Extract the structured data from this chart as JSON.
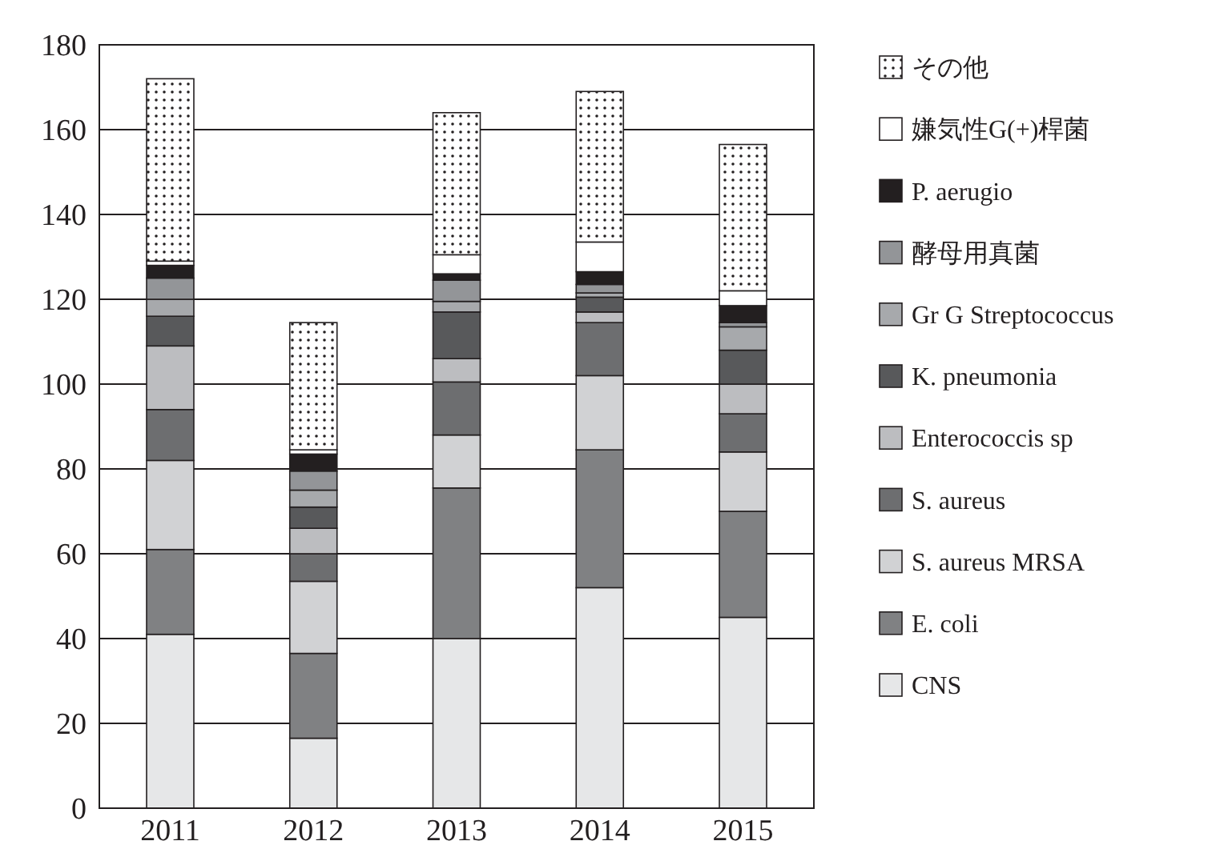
{
  "chart_data": {
    "type": "bar",
    "stacked": true,
    "categories": [
      "2011",
      "2012",
      "2013",
      "2014",
      "2015"
    ],
    "ylim": [
      0,
      180
    ],
    "yticks": [
      0,
      20,
      40,
      60,
      80,
      100,
      120,
      140,
      160,
      180
    ],
    "grid": "y",
    "legend": "right",
    "series": [
      {
        "name": "CNS",
        "color": "#e6e7e8",
        "values": [
          41,
          16.5,
          40,
          52,
          45
        ]
      },
      {
        "name": "E. coli",
        "color": "#808183",
        "values": [
          20,
          20,
          35.5,
          32.5,
          25
        ]
      },
      {
        "name": "S. aureus MRSA",
        "color": "#d1d2d4",
        "values": [
          21,
          17,
          12.5,
          17.5,
          14
        ]
      },
      {
        "name": "S. aureus",
        "color": "#6d6e70",
        "values": [
          12,
          6.5,
          12.5,
          12.5,
          9
        ]
      },
      {
        "name": "Enterococcis sp",
        "color": "#bcbdc0",
        "values": [
          15,
          6,
          5.5,
          2.5,
          7
        ]
      },
      {
        "name": "K. pneumonia",
        "color": "#58595b",
        "values": [
          7,
          5,
          11,
          3.5,
          8
        ]
      },
      {
        "name": "Gr G Streptococcus",
        "color": "#a7a9ac",
        "values": [
          4,
          4,
          2.5,
          1,
          5.5
        ]
      },
      {
        "name": "酵母用真菌",
        "color": "#939598",
        "values": [
          5,
          4.5,
          5,
          2,
          1
        ]
      },
      {
        "name": "P. aerugio",
        "color": "#231f20",
        "values": [
          3,
          4,
          1.5,
          3,
          4
        ]
      },
      {
        "name": "嫌気性G(+)桿菌",
        "color": "#ffffff",
        "values": [
          1,
          1,
          4.5,
          7,
          3.5
        ]
      },
      {
        "name": "その他",
        "color": "#231f20",
        "values": [
          43,
          30,
          33.5,
          35.5,
          34.5
        ]
      }
    ]
  }
}
